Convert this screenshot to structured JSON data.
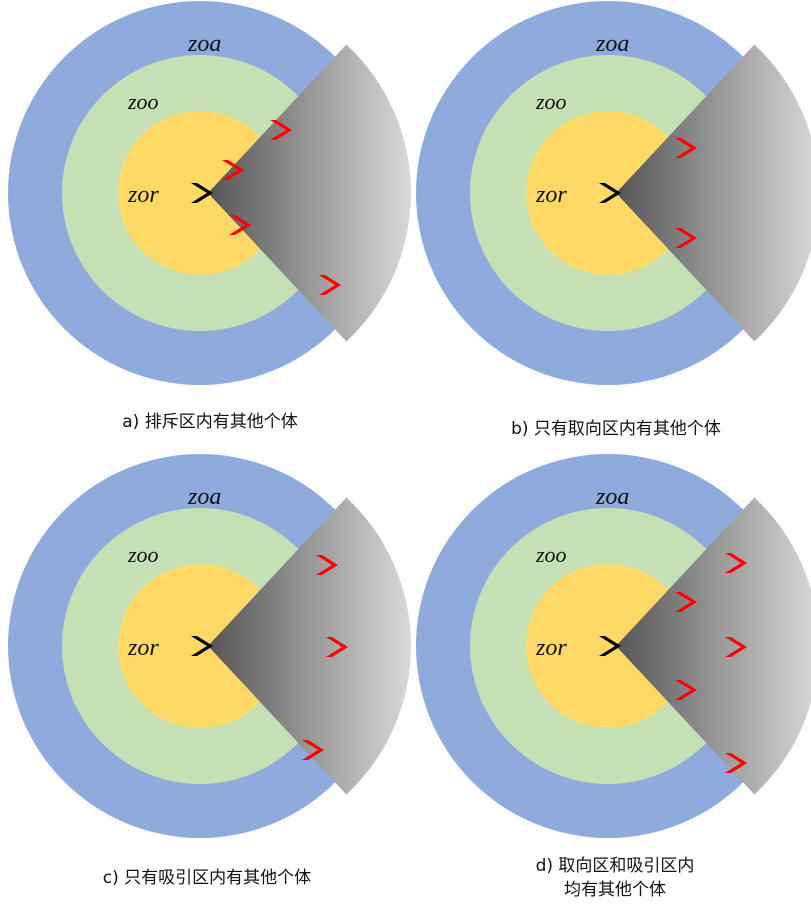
{
  "colors": {
    "zoa": "#8faadc",
    "zoo": "#c5e0b4",
    "zor": "#ffd966",
    "focal": "#000000",
    "neighbor": "#ff0000",
    "cone_dark": "#555555",
    "cone_light": "#d9d9d9"
  },
  "zone_labels": {
    "zoa": "zoa",
    "zoo": "zoo",
    "zor": "zor"
  },
  "panels": [
    {
      "id": "a",
      "caption": [
        "a)  排斥区内有其他个体"
      ],
      "neighbors": [
        [
          281,
          130
        ],
        [
          233,
          170
        ],
        [
          240,
          225
        ],
        [
          330,
          285
        ]
      ]
    },
    {
      "id": "b",
      "caption": [
        "b)  只有取向区内有其他个体"
      ],
      "neighbors": [
        [
          686,
          148
        ],
        [
          686,
          238
        ]
      ]
    },
    {
      "id": "c",
      "caption": [
        "c)  只有吸引区内有其他个体"
      ],
      "neighbors": [
        [
          327,
          565
        ],
        [
          337,
          647
        ],
        [
          313,
          750
        ]
      ]
    },
    {
      "id": "d",
      "caption": [
        "d)  取向区和吸引区内",
        "均有其他个体"
      ],
      "neighbors": [
        [
          736,
          563
        ],
        [
          686,
          602
        ],
        [
          736,
          647
        ],
        [
          686,
          690
        ],
        [
          736,
          763
        ]
      ]
    }
  ]
}
